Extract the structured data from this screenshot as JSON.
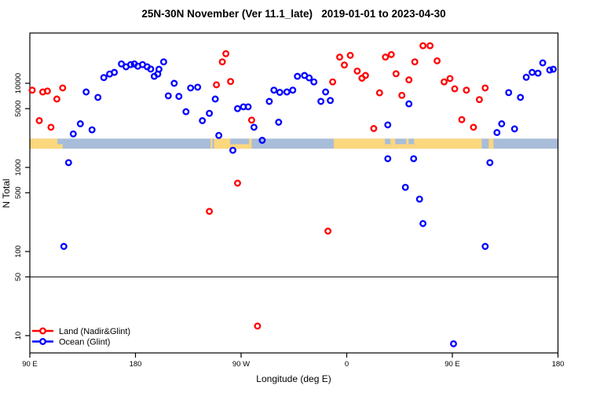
{
  "title": "25N-30N November (Ver 11.1_late)   2019-01-01 to 2023-04-30",
  "chart_data": {
    "type": "scatter",
    "xlabel": "Longitude (deg E)",
    "ylabel": "N Total",
    "y_scale": "log",
    "y_range_approx": [
      6,
      39000
    ],
    "x_range_deg_east_extended": [
      90,
      540
    ],
    "reference_line": 50,
    "grid": "off",
    "legend_position": "bottom-left",
    "x_ticks": [
      {
        "v": 90,
        "label": "90 E"
      },
      {
        "v": 180,
        "label": "180"
      },
      {
        "v": 270,
        "label": "90 W"
      },
      {
        "v": 360,
        "label": "0"
      },
      {
        "v": 450,
        "label": "90 E"
      },
      {
        "v": 540,
        "label": "180"
      }
    ],
    "y_ticks": [
      {
        "v": 10000,
        "label": "10000"
      },
      {
        "v": 5000,
        "label": "5000"
      },
      {
        "v": 1000,
        "label": "1000"
      },
      {
        "v": 500,
        "label": "500"
      },
      {
        "v": 100,
        "label": "100"
      },
      {
        "v": 50,
        "label": "50"
      },
      {
        "v": 10,
        "label": "10"
      }
    ],
    "map_strip": {
      "description": "land/ocean mask band for 25N-30N drawn across plot",
      "ocean_color": "#a8bdd9",
      "land_color": "#fbd77e",
      "value_range": [
        1670,
        2200
      ],
      "land_segments": [
        [
          90,
          113.5,
          "full"
        ],
        [
          113.5,
          118,
          "bottom"
        ],
        [
          244,
          245.5,
          "full"
        ],
        [
          247,
          260.7,
          "full"
        ],
        [
          260.7,
          276.8,
          "bottom"
        ],
        [
          276.8,
          279,
          "full"
        ],
        [
          349,
          392.6,
          "full"
        ],
        [
          392.6,
          397.3,
          "bottom"
        ],
        [
          397.3,
          401.3,
          "full"
        ],
        [
          401.3,
          410.7,
          "bottom"
        ],
        [
          410.7,
          412.7,
          "full"
        ],
        [
          412.7,
          417.4,
          "bottom"
        ],
        [
          417.4,
          475,
          "full"
        ],
        [
          481,
          485,
          "full"
        ]
      ]
    },
    "series": [
      {
        "name": "Land (Nadir&Glint)",
        "color": "#ff0000",
        "points": [
          [
            92,
            8300
          ],
          [
            98,
            3600
          ],
          [
            101,
            7900
          ],
          [
            105,
            8100
          ],
          [
            108,
            3000
          ],
          [
            113,
            6500
          ],
          [
            118,
            8800
          ],
          [
            249,
            9600
          ],
          [
            254,
            18000
          ],
          [
            257,
            22500
          ],
          [
            261,
            10500
          ],
          [
            279,
            3650
          ],
          [
            348,
            10400
          ],
          [
            354,
            20500
          ],
          [
            358,
            16500
          ],
          [
            363,
            21500
          ],
          [
            369,
            14000
          ],
          [
            373,
            11500
          ],
          [
            376,
            12400
          ],
          [
            383,
            2900
          ],
          [
            388,
            7700
          ],
          [
            393,
            20500
          ],
          [
            398,
            22000
          ],
          [
            402,
            13000
          ],
          [
            407,
            7200
          ],
          [
            413,
            11000
          ],
          [
            418,
            18000
          ],
          [
            425,
            28000
          ],
          [
            431,
            28000
          ],
          [
            437,
            18500
          ],
          [
            443,
            10400
          ],
          [
            448,
            11400
          ],
          [
            452,
            8600
          ],
          [
            458,
            3700
          ],
          [
            462,
            8300
          ],
          [
            468,
            3000
          ],
          [
            473,
            6400
          ],
          [
            478,
            8800
          ],
          [
            243,
            300
          ],
          [
            267,
            650
          ],
          [
            344,
            175
          ],
          [
            284,
            13
          ]
        ]
      },
      {
        "name": "Ocean (Glint)",
        "color": "#0000ff",
        "points": [
          [
            119,
            115
          ],
          [
            123,
            1140
          ],
          [
            127,
            2500
          ],
          [
            133,
            3300
          ],
          [
            138,
            7900
          ],
          [
            143,
            2800
          ],
          [
            148,
            6800
          ],
          [
            153,
            11700
          ],
          [
            158,
            12900
          ],
          [
            162,
            13500
          ],
          [
            168,
            17000
          ],
          [
            172,
            15700
          ],
          [
            176,
            16700
          ],
          [
            179,
            17000
          ],
          [
            182,
            16000
          ],
          [
            186,
            16700
          ],
          [
            190,
            15700
          ],
          [
            193,
            14800
          ],
          [
            196,
            12100
          ],
          [
            199,
            12900
          ],
          [
            200,
            14700
          ],
          [
            204,
            18000
          ],
          [
            208,
            7100
          ],
          [
            213,
            10000
          ],
          [
            217,
            7000
          ],
          [
            223,
            4600
          ],
          [
            227,
            8800
          ],
          [
            233,
            9000
          ],
          [
            237,
            3600
          ],
          [
            243,
            4400
          ],
          [
            248,
            6500
          ],
          [
            251,
            2400
          ],
          [
            263,
            1600
          ],
          [
            267,
            5000
          ],
          [
            272,
            5250
          ],
          [
            276,
            5250
          ],
          [
            281,
            3000
          ],
          [
            288,
            2100
          ],
          [
            294,
            6100
          ],
          [
            298,
            8300
          ],
          [
            302,
            3450
          ],
          [
            303,
            7800
          ],
          [
            309,
            7900
          ],
          [
            314,
            8300
          ],
          [
            318,
            12100
          ],
          [
            324,
            12400
          ],
          [
            328,
            11600
          ],
          [
            332,
            10400
          ],
          [
            338,
            6100
          ],
          [
            342,
            7900
          ],
          [
            346,
            6250
          ],
          [
            395,
            3200
          ],
          [
            395,
            1270
          ],
          [
            410,
            580
          ],
          [
            413,
            5700
          ],
          [
            417,
            1270
          ],
          [
            422,
            420
          ],
          [
            425,
            215
          ],
          [
            451,
            8
          ],
          [
            478,
            115
          ],
          [
            482,
            1140
          ],
          [
            488,
            2600
          ],
          [
            492,
            3300
          ],
          [
            498,
            7750
          ],
          [
            503,
            2870
          ],
          [
            508,
            6800
          ],
          [
            513,
            11800
          ],
          [
            518,
            13500
          ],
          [
            523,
            13200
          ],
          [
            527,
            17500
          ],
          [
            533,
            14400
          ],
          [
            536,
            14700
          ]
        ]
      }
    ]
  }
}
